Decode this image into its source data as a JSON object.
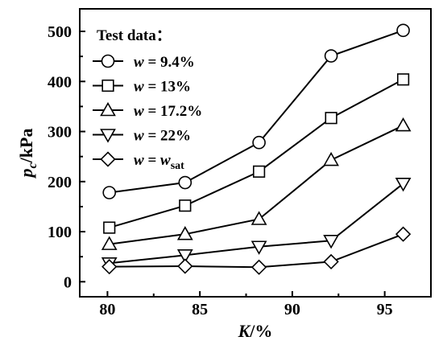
{
  "chart_data": {
    "type": "line",
    "xlabel": {
      "var": "K",
      "unit": "/%"
    },
    "ylabel": {
      "var": "p",
      "sub": "c",
      "unit": "/kPa"
    },
    "xlim": [
      78.5,
      97.5
    ],
    "ylim": [
      -30,
      545
    ],
    "xticks": [
      80,
      85,
      90,
      95
    ],
    "yticks": [
      0,
      100,
      200,
      300,
      400,
      500
    ],
    "x": [
      80.1,
      84.2,
      88.2,
      92.1,
      96.0
    ],
    "legend": {
      "title": "Test data：",
      "placement": "top-left"
    },
    "series": [
      {
        "name": "w = 9.4%",
        "label": {
          "var": "w",
          "eq": " = ",
          "val": "9.4%"
        },
        "marker": "circle",
        "values": [
          178,
          198,
          278,
          451,
          502
        ]
      },
      {
        "name": "w = 13%",
        "label": {
          "var": "w",
          "eq": " = ",
          "val": "13%"
        },
        "marker": "square",
        "values": [
          108,
          152,
          220,
          327,
          404
        ]
      },
      {
        "name": "w = 17.2%",
        "label": {
          "var": "w",
          "eq": " = ",
          "val": "17.2%"
        },
        "marker": "triangle-up",
        "values": [
          75,
          95,
          125,
          243,
          312
        ]
      },
      {
        "name": "w = 22%",
        "label": {
          "var": "w",
          "eq": " = ",
          "val": "22%"
        },
        "marker": "triangle-down",
        "values": [
          37,
          53,
          70,
          82,
          196
        ]
      },
      {
        "name": "w = wsat",
        "label": {
          "var": "w",
          "eq": " = ",
          "val": "w",
          "sub": "sat"
        },
        "marker": "diamond",
        "values": [
          30,
          31,
          29,
          40,
          95
        ]
      }
    ]
  }
}
